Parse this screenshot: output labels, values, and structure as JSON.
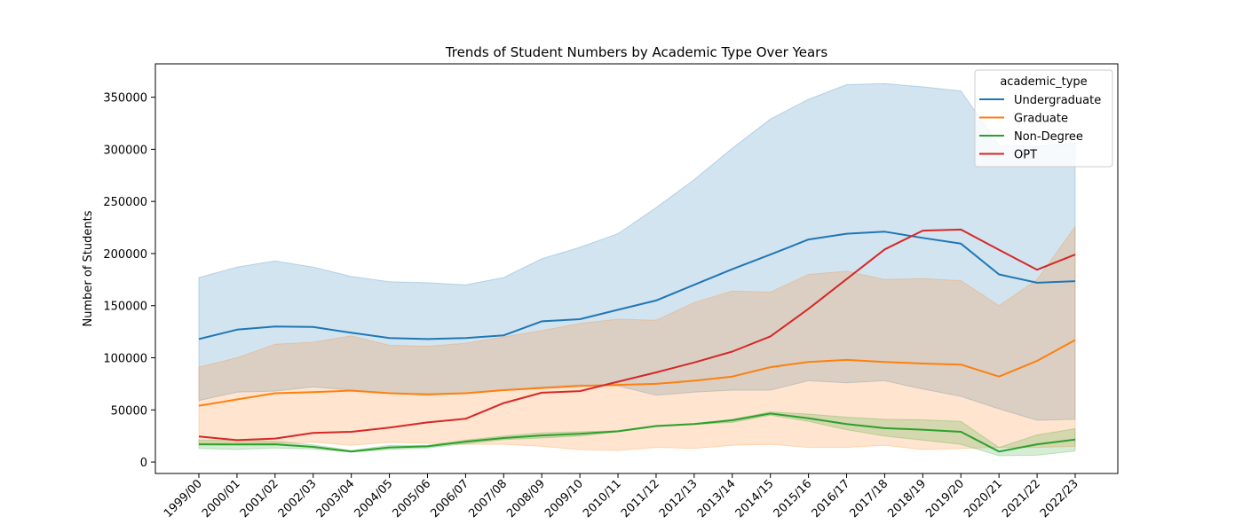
{
  "chart_data": {
    "type": "line",
    "title": "Trends of Student Numbers by Academic Type Over Years",
    "xlabel": "",
    "ylabel": "Number of Students",
    "ylim": [
      -11000,
      382000
    ],
    "yticks": [
      0,
      50000,
      100000,
      150000,
      200000,
      250000,
      300000,
      350000
    ],
    "grid": false,
    "legend": {
      "title": "academic_type",
      "placement": "top-right"
    },
    "categories": [
      "1999/00",
      "2000/01",
      "2001/02",
      "2002/03",
      "2003/04",
      "2004/05",
      "2005/06",
      "2006/07",
      "2007/08",
      "2008/09",
      "2009/10",
      "2010/11",
      "2011/12",
      "2012/13",
      "2013/14",
      "2014/15",
      "2015/16",
      "2016/17",
      "2017/18",
      "2018/19",
      "2019/20",
      "2020/21",
      "2021/22",
      "2022/23"
    ],
    "series": [
      {
        "name": "Undergraduate",
        "color": "#1f77b4",
        "values": [
          118000,
          127000,
          130000,
          129500,
          124000,
          119000,
          118000,
          119000,
          121500,
          135000,
          137000,
          146000,
          155000,
          170000,
          185000,
          199000,
          213500,
          219000,
          221000,
          215000,
          209500,
          180000,
          172000,
          173500
        ],
        "lower": [
          59000,
          67000,
          68000,
          72000,
          69000,
          66000,
          64000,
          66000,
          69000,
          72000,
          74000,
          73000,
          64000,
          67000,
          69000,
          69000,
          78000,
          76000,
          78000,
          70000,
          63000,
          51000,
          40000,
          41000
        ],
        "upper": [
          177000,
          187000,
          193000,
          187000,
          178000,
          173000,
          172000,
          170000,
          177000,
          195000,
          206000,
          219000,
          244000,
          271000,
          301000,
          329000,
          348000,
          362000,
          363000,
          360000,
          356000,
          304000,
          303000,
          306000
        ]
      },
      {
        "name": "Graduate",
        "color": "#ff7f0e",
        "values": [
          54000,
          60000,
          66000,
          67000,
          68500,
          66000,
          65000,
          66000,
          69000,
          71000,
          73000,
          74000,
          75000,
          78000,
          82000,
          91000,
          96000,
          98000,
          96000,
          94500,
          93500,
          82000,
          97000,
          117000
        ],
        "lower": [
          18000,
          18000,
          18000,
          19000,
          16000,
          19000,
          18000,
          17000,
          17000,
          15000,
          12000,
          11000,
          14000,
          13000,
          16000,
          17000,
          14000,
          14000,
          16000,
          12000,
          13000,
          14000,
          14000,
          15000
        ],
        "upper": [
          91000,
          100000,
          113000,
          115000,
          121000,
          112000,
          111000,
          114000,
          120000,
          126000,
          133000,
          137000,
          136000,
          153000,
          164000,
          163000,
          180000,
          183000,
          175000,
          176000,
          174000,
          150000,
          175000,
          226000
        ]
      },
      {
        "name": "Non-Degree",
        "color": "#2ca02c",
        "values": [
          17000,
          16800,
          17000,
          14500,
          10000,
          14000,
          15000,
          19500,
          23000,
          25500,
          27000,
          29500,
          34500,
          36500,
          40000,
          46500,
          42000,
          36500,
          32500,
          31000,
          29000,
          10000,
          17000,
          21500
        ],
        "lower": [
          13000,
          12000,
          13500,
          12500,
          9500,
          12000,
          13500,
          17500,
          21500,
          23000,
          25000,
          29000,
          34000,
          36000,
          38000,
          45000,
          39000,
          31000,
          25000,
          21000,
          17000,
          6000,
          6500,
          10500
        ],
        "upper": [
          21000,
          21000,
          20000,
          16500,
          11000,
          16000,
          16000,
          21000,
          25000,
          28000,
          29000,
          30000,
          35000,
          37000,
          41000,
          48000,
          46000,
          43000,
          41000,
          40500,
          39000,
          14000,
          26000,
          32000
        ]
      },
      {
        "name": "OPT",
        "color": "#d62728",
        "values": [
          24500,
          21000,
          22500,
          28000,
          29000,
          33000,
          38000,
          41500,
          56500,
          66500,
          68000,
          77000,
          86000,
          95500,
          106000,
          120500,
          147000,
          175500,
          204000,
          222000,
          223000,
          203500,
          184500,
          199000
        ]
      }
    ]
  }
}
